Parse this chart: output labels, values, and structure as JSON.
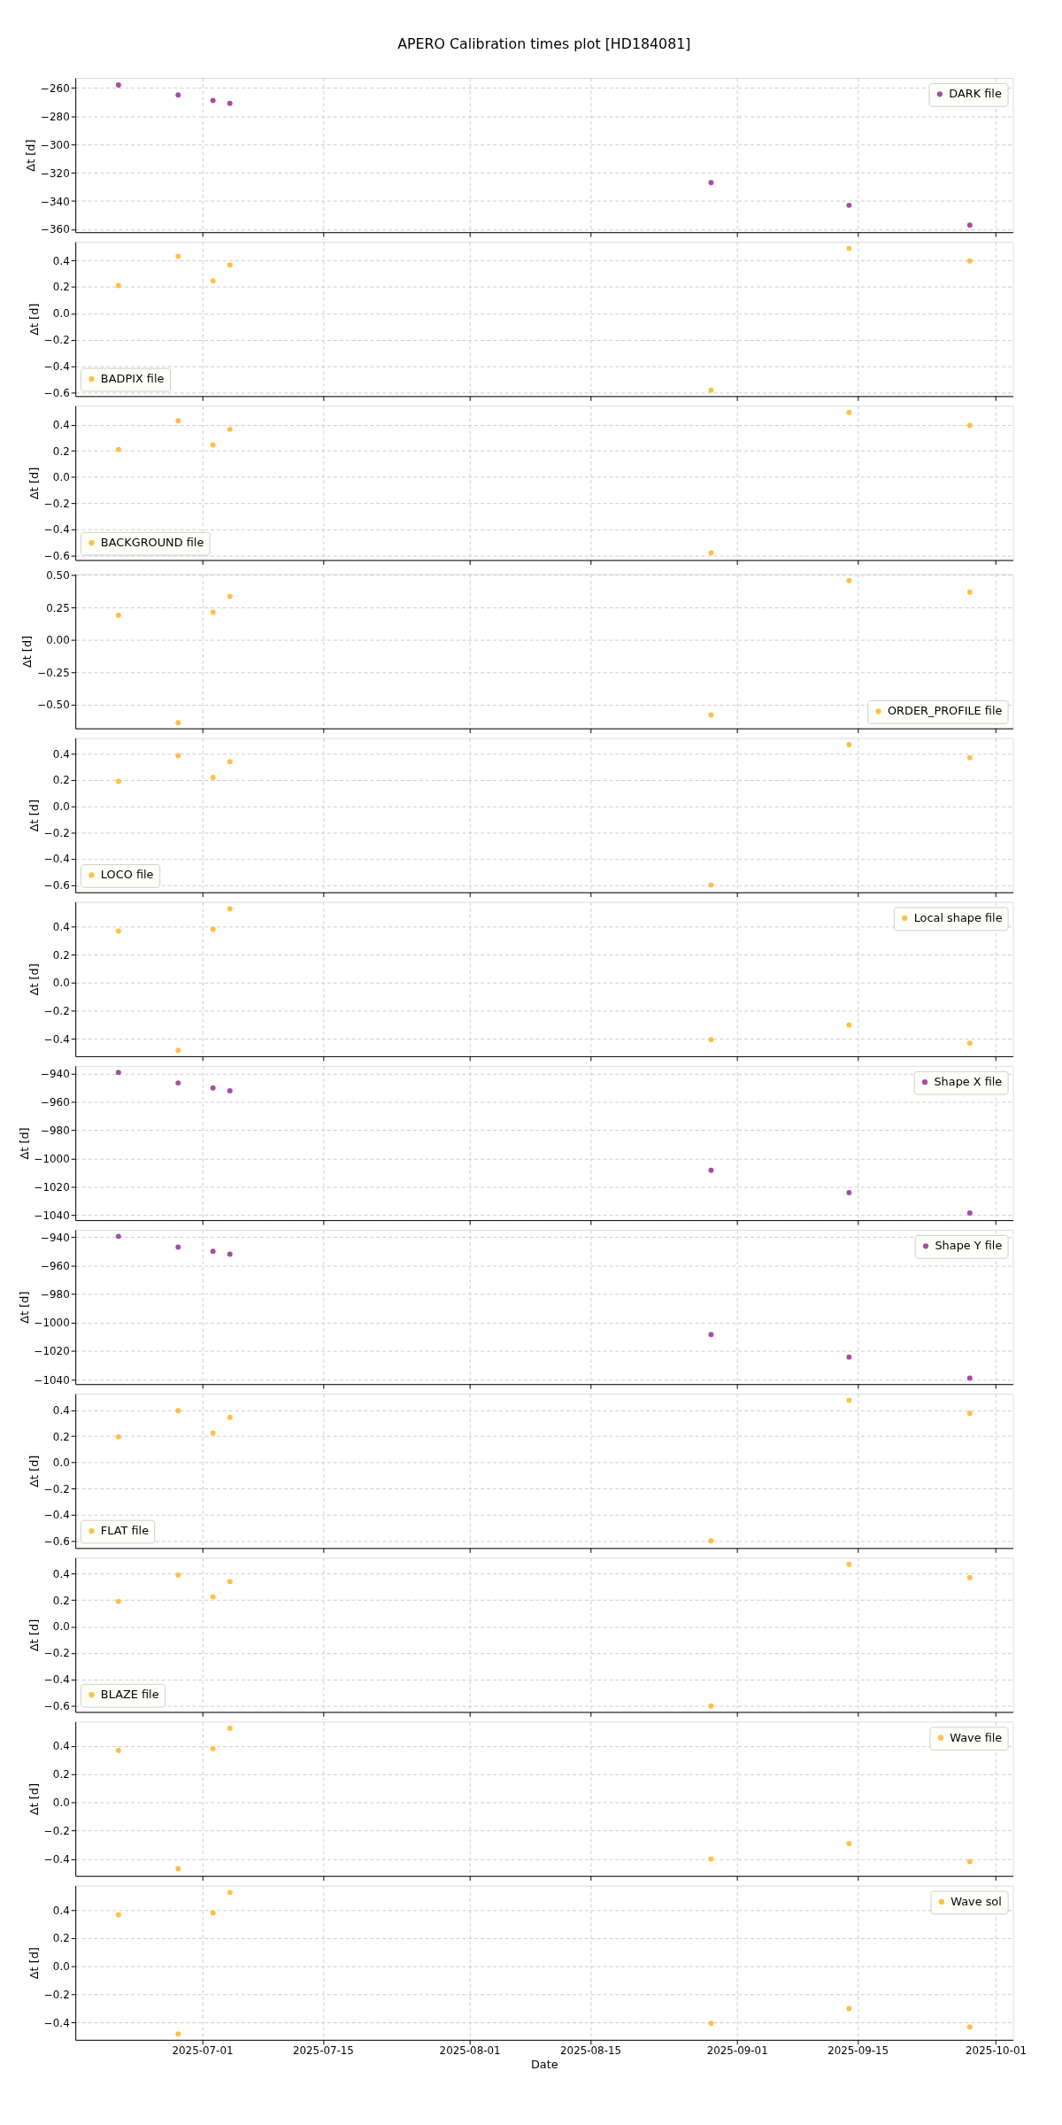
{
  "chart_data": [
    {
      "type": "scatter",
      "title": "APERO Calibration times plot [HD184081]",
      "ylabel": "Δt [d]",
      "x": [
        "2025-06-21T07:00",
        "2025-06-28T05:00",
        "2025-07-02T06:00",
        "2025-07-04T05:00",
        "2025-08-29",
        "2025-09-14",
        "2025-09-28"
      ],
      "xlim": [
        "2025-06-16T07:00",
        "2025-10-03"
      ],
      "xticks": [
        "2025-07-01",
        "2025-07-15",
        "2025-08-01",
        "2025-08-15",
        "2025-09-01",
        "2025-09-15",
        "2025-10-01"
      ],
      "ylim": [
        -362,
        -253
      ],
      "yticks": [
        {
          "value": -360,
          "label": "−360"
        },
        {
          "value": -340,
          "label": "−340"
        },
        {
          "value": -320,
          "label": "−320"
        },
        {
          "value": -300,
          "label": "−300"
        },
        {
          "value": -280,
          "label": "−280"
        },
        {
          "value": -260,
          "label": "−260"
        }
      ],
      "tick_labels": "y",
      "grid": true,
      "marker": "circle",
      "legend": "top right",
      "series": [
        {
          "name": "DARK file",
          "color": "#a64ca6",
          "values": [
            -258,
            -265,
            -269,
            -271,
            -327,
            -343,
            -357
          ]
        }
      ]
    },
    {
      "type": "scatter",
      "ylabel": "Δt [d]",
      "x": [
        "2025-06-21T07:00",
        "2025-06-28T05:00",
        "2025-07-02T06:00",
        "2025-07-04T05:00",
        "2025-08-29",
        "2025-09-14",
        "2025-09-28"
      ],
      "xlim": [
        "2025-06-16T07:00",
        "2025-10-03"
      ],
      "xticks": [
        "2025-07-01",
        "2025-07-15",
        "2025-08-01",
        "2025-08-15",
        "2025-09-01",
        "2025-09-15",
        "2025-10-01"
      ],
      "ylim": [
        -0.625,
        0.54
      ],
      "yticks": [
        {
          "value": -0.6,
          "label": "−0.6"
        },
        {
          "value": -0.4,
          "label": "−0.4"
        },
        {
          "value": -0.2,
          "label": "−0.2"
        },
        {
          "value": 0,
          "label": "0.0"
        },
        {
          "value": 0.2,
          "label": "0.2"
        },
        {
          "value": 0.4,
          "label": "0.4"
        }
      ],
      "tick_labels": "y",
      "grid": true,
      "marker": "circle",
      "legend": "bottom left",
      "series": [
        {
          "name": "BADPIX file",
          "color": "#ffbf47",
          "values": [
            0.21,
            0.43,
            0.245,
            0.365,
            -0.58,
            0.49,
            0.395
          ]
        }
      ]
    },
    {
      "type": "scatter",
      "ylabel": "Δt [d]",
      "x": [
        "2025-06-21T07:00",
        "2025-06-28T05:00",
        "2025-07-02T06:00",
        "2025-07-04T05:00",
        "2025-08-29",
        "2025-09-14",
        "2025-09-28"
      ],
      "xlim": [
        "2025-06-16T07:00",
        "2025-10-03"
      ],
      "xticks": [
        "2025-07-01",
        "2025-07-15",
        "2025-08-01",
        "2025-08-15",
        "2025-09-01",
        "2025-09-15",
        "2025-10-01"
      ],
      "ylim": [
        -0.635,
        0.545
      ],
      "yticks": [
        {
          "value": -0.6,
          "label": "−0.6"
        },
        {
          "value": -0.4,
          "label": "−0.4"
        },
        {
          "value": -0.2,
          "label": "−0.2"
        },
        {
          "value": 0,
          "label": "0.0"
        },
        {
          "value": 0.2,
          "label": "0.2"
        },
        {
          "value": 0.4,
          "label": "0.4"
        }
      ],
      "tick_labels": "y",
      "grid": true,
      "marker": "circle",
      "legend": "bottom left",
      "series": [
        {
          "name": "BACKGROUND file",
          "color": "#ffbf47",
          "values": [
            0.21,
            0.43,
            0.245,
            0.365,
            -0.58,
            0.495,
            0.395
          ]
        }
      ]
    },
    {
      "type": "scatter",
      "ylabel": "Δt [d]",
      "x": [
        "2025-06-21T07:00",
        "2025-06-28T05:00",
        "2025-07-02T06:00",
        "2025-07-04T05:00",
        "2025-08-29",
        "2025-09-14",
        "2025-09-28"
      ],
      "xlim": [
        "2025-06-16T07:00",
        "2025-10-03"
      ],
      "xticks": [
        "2025-07-01",
        "2025-07-15",
        "2025-08-01",
        "2025-08-15",
        "2025-09-01",
        "2025-09-15",
        "2025-10-01"
      ],
      "ylim": [
        -0.684,
        0.51
      ],
      "yticks": [
        {
          "value": -0.5,
          "label": "−0.50"
        },
        {
          "value": -0.25,
          "label": "−0.25"
        },
        {
          "value": 0,
          "label": "0.00"
        },
        {
          "value": 0.25,
          "label": "0.25"
        },
        {
          "value": 0.5,
          "label": "0.50"
        }
      ],
      "tick_labels": "y",
      "grid": true,
      "marker": "circle",
      "legend": "bottom right",
      "series": [
        {
          "name": "ORDER_PROFILE file",
          "color": "#ffbf47",
          "values": [
            0.19,
            -0.64,
            0.214,
            0.337,
            -0.58,
            0.46,
            0.37
          ]
        }
      ]
    },
    {
      "type": "scatter",
      "ylabel": "Δt [d]",
      "x": [
        "2025-06-21T07:00",
        "2025-06-28T05:00",
        "2025-07-02T06:00",
        "2025-07-04T05:00",
        "2025-08-29",
        "2025-09-14",
        "2025-09-28"
      ],
      "xlim": [
        "2025-06-16T07:00",
        "2025-10-03"
      ],
      "xticks": [
        "2025-07-01",
        "2025-07-15",
        "2025-08-01",
        "2025-08-15",
        "2025-09-01",
        "2025-09-15",
        "2025-10-01"
      ],
      "ylim": [
        -0.655,
        0.52
      ],
      "yticks": [
        {
          "value": -0.6,
          "label": "−0.6"
        },
        {
          "value": -0.4,
          "label": "−0.4"
        },
        {
          "value": -0.2,
          "label": "−0.2"
        },
        {
          "value": 0,
          "label": "0.0"
        },
        {
          "value": 0.2,
          "label": "0.2"
        },
        {
          "value": 0.4,
          "label": "0.4"
        }
      ],
      "tick_labels": "y",
      "grid": true,
      "marker": "circle",
      "legend": "bottom left",
      "series": [
        {
          "name": "LOCO file",
          "color": "#ffbf47",
          "values": [
            0.19,
            0.385,
            0.22,
            0.34,
            -0.6,
            0.47,
            0.37
          ]
        }
      ]
    },
    {
      "type": "scatter",
      "ylabel": "Δt [d]",
      "x": [
        "2025-06-21T07:00",
        "2025-06-28T05:00",
        "2025-07-02T06:00",
        "2025-07-04T05:00",
        "2025-08-29",
        "2025-09-14",
        "2025-09-28"
      ],
      "xlim": [
        "2025-06-16T07:00",
        "2025-10-03"
      ],
      "xticks": [
        "2025-07-01",
        "2025-07-15",
        "2025-08-01",
        "2025-08-15",
        "2025-09-01",
        "2025-09-15",
        "2025-10-01"
      ],
      "ylim": [
        -0.522,
        0.574
      ],
      "yticks": [
        {
          "value": -0.4,
          "label": "−0.4"
        },
        {
          "value": -0.2,
          "label": "−0.2"
        },
        {
          "value": 0,
          "label": "0.0"
        },
        {
          "value": 0.2,
          "label": "0.2"
        },
        {
          "value": 0.4,
          "label": "0.4"
        }
      ],
      "tick_labels": "y",
      "grid": true,
      "marker": "circle",
      "legend": "top right",
      "series": [
        {
          "name": "Local shape file",
          "color": "#ffbf47",
          "values": [
            0.367,
            -0.48,
            0.38,
            0.525,
            -0.405,
            -0.3,
            -0.43
          ]
        }
      ]
    },
    {
      "type": "scatter",
      "ylabel": "Δt [d]",
      "x": [
        "2025-06-21T07:00",
        "2025-06-28T05:00",
        "2025-07-02T06:00",
        "2025-07-04T05:00",
        "2025-08-29",
        "2025-09-14",
        "2025-09-28"
      ],
      "xlim": [
        "2025-06-16T07:00",
        "2025-10-03"
      ],
      "xticks": [
        "2025-07-01",
        "2025-07-15",
        "2025-08-01",
        "2025-08-15",
        "2025-09-01",
        "2025-09-15",
        "2025-10-01"
      ],
      "ylim": [
        -1043.7,
        -934.4
      ],
      "yticks": [
        {
          "value": -1040,
          "label": "−1040"
        },
        {
          "value": -1020,
          "label": "−1020"
        },
        {
          "value": -1000,
          "label": "−1000"
        },
        {
          "value": -980,
          "label": "−980"
        },
        {
          "value": -960,
          "label": "−960"
        },
        {
          "value": -940,
          "label": "−940"
        }
      ],
      "tick_labels": "y",
      "grid": true,
      "marker": "circle",
      "legend": "top right",
      "series": [
        {
          "name": "Shape X file",
          "color": "#a64ca6",
          "values": [
            -939,
            -946.5,
            -950,
            -952,
            -1008.4,
            -1024.2,
            -1038.6
          ]
        }
      ]
    },
    {
      "type": "scatter",
      "ylabel": "Δt [d]",
      "x": [
        "2025-06-21T07:00",
        "2025-06-28T05:00",
        "2025-07-02T06:00",
        "2025-07-04T05:00",
        "2025-08-29",
        "2025-09-14",
        "2025-09-28"
      ],
      "xlim": [
        "2025-06-16T07:00",
        "2025-10-03"
      ],
      "xticks": [
        "2025-07-01",
        "2025-07-15",
        "2025-08-01",
        "2025-08-15",
        "2025-09-01",
        "2025-09-15",
        "2025-10-01"
      ],
      "ylim": [
        -1043.2,
        -934.9
      ],
      "yticks": [
        {
          "value": -1040,
          "label": "−1040"
        },
        {
          "value": -1020,
          "label": "−1020"
        },
        {
          "value": -1000,
          "label": "−1000"
        },
        {
          "value": -980,
          "label": "−980"
        },
        {
          "value": -960,
          "label": "−960"
        },
        {
          "value": -940,
          "label": "−940"
        }
      ],
      "tick_labels": "y",
      "grid": true,
      "marker": "circle",
      "legend": "top right",
      "series": [
        {
          "name": "Shape Y file",
          "color": "#a64ca6",
          "values": [
            -939.5,
            -947,
            -950,
            -952,
            -1008.4,
            -1024.2,
            -1039
          ]
        }
      ]
    },
    {
      "type": "scatter",
      "ylabel": "Δt [d]",
      "x": [
        "2025-06-21T07:00",
        "2025-06-28T05:00",
        "2025-07-02T06:00",
        "2025-07-04T05:00",
        "2025-08-29",
        "2025-09-14",
        "2025-09-28"
      ],
      "xlim": [
        "2025-06-16T07:00",
        "2025-10-03"
      ],
      "xticks": [
        "2025-07-01",
        "2025-07-15",
        "2025-08-01",
        "2025-08-15",
        "2025-09-01",
        "2025-09-15",
        "2025-10-01"
      ],
      "ylim": [
        -0.655,
        0.525
      ],
      "yticks": [
        {
          "value": -0.6,
          "label": "−0.6"
        },
        {
          "value": -0.4,
          "label": "−0.4"
        },
        {
          "value": -0.2,
          "label": "−0.2"
        },
        {
          "value": 0,
          "label": "0.0"
        },
        {
          "value": 0.2,
          "label": "0.2"
        },
        {
          "value": 0.4,
          "label": "0.4"
        }
      ],
      "tick_labels": "y",
      "grid": true,
      "marker": "circle",
      "legend": "bottom left",
      "series": [
        {
          "name": "FLAT file",
          "color": "#ffbf47",
          "values": [
            0.195,
            0.395,
            0.225,
            0.345,
            -0.6,
            0.475,
            0.375
          ]
        }
      ]
    },
    {
      "type": "scatter",
      "ylabel": "Δt [d]",
      "x": [
        "2025-06-21T07:00",
        "2025-06-28T05:00",
        "2025-07-02T06:00",
        "2025-07-04T05:00",
        "2025-08-29",
        "2025-09-14",
        "2025-09-28"
      ],
      "xlim": [
        "2025-06-16T07:00",
        "2025-10-03"
      ],
      "xticks": [
        "2025-07-01",
        "2025-07-15",
        "2025-08-01",
        "2025-08-15",
        "2025-09-01",
        "2025-09-15",
        "2025-10-01"
      ],
      "ylim": [
        -0.645,
        0.52
      ],
      "yticks": [
        {
          "value": -0.6,
          "label": "−0.6"
        },
        {
          "value": -0.4,
          "label": "−0.4"
        },
        {
          "value": -0.2,
          "label": "−0.2"
        },
        {
          "value": 0,
          "label": "0.0"
        },
        {
          "value": 0.2,
          "label": "0.2"
        },
        {
          "value": 0.4,
          "label": "0.4"
        }
      ],
      "tick_labels": "y",
      "grid": true,
      "marker": "circle",
      "legend": "bottom left",
      "series": [
        {
          "name": "BLAZE file",
          "color": "#ffbf47",
          "values": [
            0.19,
            0.39,
            0.225,
            0.34,
            -0.6,
            0.47,
            0.37
          ]
        }
      ]
    },
    {
      "type": "scatter",
      "ylabel": "Δt [d]",
      "x": [
        "2025-06-21T07:00",
        "2025-06-28T05:00",
        "2025-07-02T06:00",
        "2025-07-04T05:00",
        "2025-08-29",
        "2025-09-14",
        "2025-09-28"
      ],
      "xlim": [
        "2025-06-16T07:00",
        "2025-10-03"
      ],
      "xticks": [
        "2025-07-01",
        "2025-07-15",
        "2025-08-01",
        "2025-08-15",
        "2025-09-01",
        "2025-09-15",
        "2025-10-01"
      ],
      "ylim": [
        -0.521,
        0.572
      ],
      "yticks": [
        {
          "value": -0.4,
          "label": "−0.4"
        },
        {
          "value": -0.2,
          "label": "−0.2"
        },
        {
          "value": 0,
          "label": "0.0"
        },
        {
          "value": 0.2,
          "label": "0.2"
        },
        {
          "value": 0.4,
          "label": "0.4"
        }
      ],
      "tick_labels": "y",
      "grid": true,
      "marker": "circle",
      "legend": "top right",
      "series": [
        {
          "name": "Wave file",
          "color": "#ffbf47",
          "values": [
            0.367,
            -0.47,
            0.38,
            0.525,
            -0.4,
            -0.293,
            -0.42
          ]
        }
      ]
    },
    {
      "type": "scatter",
      "ylabel": "Δt [d]",
      "xlabel": "Date",
      "x": [
        "2025-06-21T07:00",
        "2025-06-28T05:00",
        "2025-07-02T06:00",
        "2025-07-04T05:00",
        "2025-08-29",
        "2025-09-14",
        "2025-09-28"
      ],
      "xlim": [
        "2025-06-16T07:00",
        "2025-10-03"
      ],
      "xticks": [
        "2025-07-01",
        "2025-07-15",
        "2025-08-01",
        "2025-08-15",
        "2025-09-01",
        "2025-09-15",
        "2025-10-01"
      ],
      "ylim": [
        -0.522,
        0.574
      ],
      "yticks": [
        {
          "value": -0.4,
          "label": "−0.4"
        },
        {
          "value": -0.2,
          "label": "−0.2"
        },
        {
          "value": 0,
          "label": "0.0"
        },
        {
          "value": 0.2,
          "label": "0.2"
        },
        {
          "value": 0.4,
          "label": "0.4"
        }
      ],
      "grid": true,
      "marker": "circle",
      "legend": "top right",
      "series": [
        {
          "name": "Wave sol",
          "color": "#ffbf47",
          "values": [
            0.367,
            -0.48,
            0.38,
            0.525,
            -0.405,
            -0.3,
            -0.43
          ]
        }
      ]
    }
  ]
}
